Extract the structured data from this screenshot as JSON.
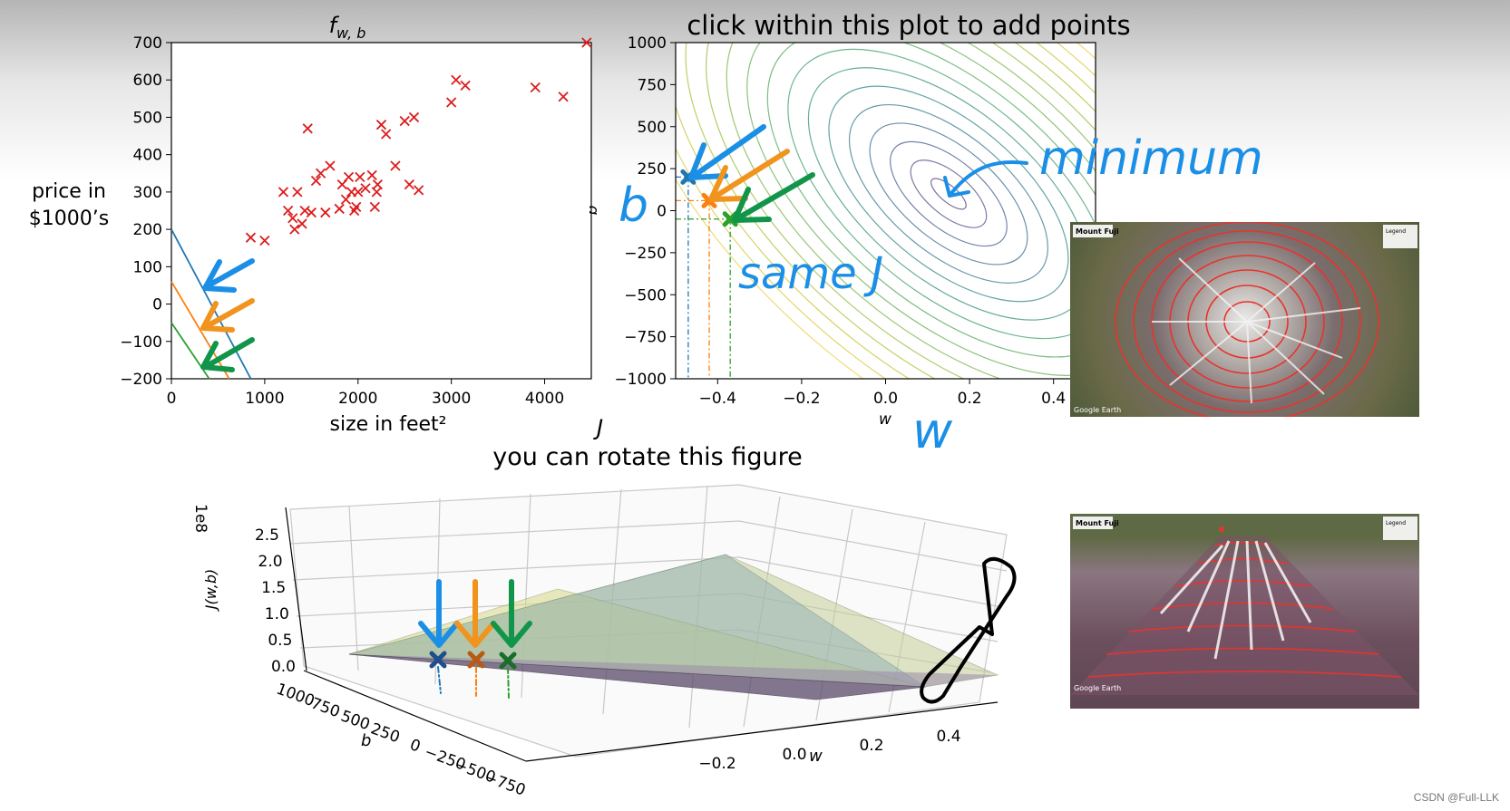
{
  "chart_data": [
    {
      "type": "scatter",
      "title": "f_w,b",
      "xlabel": "size in feet²",
      "ylabel": [
        "price in",
        "$1000’s"
      ],
      "xlim": [
        0,
        4500
      ],
      "ylim": [
        -200,
        700
      ],
      "xticks": [
        "0",
        "1000",
        "2000",
        "3000",
        "4000"
      ],
      "yticks": [
        "700",
        "600",
        "500",
        "400",
        "300",
        "200",
        "100",
        "0",
        "−100",
        "−200"
      ],
      "marker": "x",
      "color": "#dd1c1c",
      "points": [
        [
          850,
          178
        ],
        [
          1000,
          170
        ],
        [
          1200,
          300
        ],
        [
          1250,
          250
        ],
        [
          1300,
          230
        ],
        [
          1320,
          200
        ],
        [
          1350,
          300
        ],
        [
          1400,
          215
        ],
        [
          1430,
          250
        ],
        [
          1460,
          470
        ],
        [
          1500,
          245
        ],
        [
          1550,
          330
        ],
        [
          1600,
          350
        ],
        [
          1650,
          245
        ],
        [
          1700,
          370
        ],
        [
          1800,
          255
        ],
        [
          1830,
          320
        ],
        [
          1870,
          280
        ],
        [
          1900,
          340
        ],
        [
          1930,
          300
        ],
        [
          1960,
          250
        ],
        [
          1980,
          260
        ],
        [
          2000,
          300
        ],
        [
          2020,
          340
        ],
        [
          2080,
          310
        ],
        [
          2150,
          345
        ],
        [
          2180,
          260
        ],
        [
          2200,
          300
        ],
        [
          2210,
          320
        ],
        [
          2250,
          480
        ],
        [
          2300,
          455
        ],
        [
          2400,
          370
        ],
        [
          2500,
          490
        ],
        [
          2550,
          320
        ],
        [
          2600,
          500
        ],
        [
          2650,
          305
        ],
        [
          3000,
          540
        ],
        [
          3050,
          600
        ],
        [
          3150,
          585
        ],
        [
          3900,
          580
        ],
        [
          4200,
          555
        ],
        [
          4450,
          700
        ]
      ],
      "lines": [
        {
          "name": "blue",
          "color": "#1f77b4",
          "intercept": 200,
          "slope": -0.47
        },
        {
          "name": "orange",
          "color": "#ff7f0e",
          "intercept": 60,
          "slope": -0.42
        },
        {
          "name": "green",
          "color": "#2ca02c",
          "intercept": -50,
          "slope": -0.37
        }
      ]
    },
    {
      "type": "contour",
      "title": "click within this plot to add points",
      "xlabel": "w",
      "ylabel": "b",
      "xlim": [
        -0.5,
        0.5
      ],
      "ylim": [
        -1000,
        1000
      ],
      "xticks": [
        "−0.4",
        "−0.2",
        "0.0",
        "0.2",
        "0.4"
      ],
      "yticks": [
        "1000",
        "750",
        "500",
        "250",
        "0",
        "−250",
        "−500",
        "−750",
        "−1000"
      ],
      "minimum": [
        0.15,
        100
      ],
      "points": [
        {
          "name": "blue",
          "color": "#1f77b4",
          "w": -0.47,
          "b": 200
        },
        {
          "name": "orange",
          "color": "#ff7f0e",
          "w": -0.42,
          "b": 60
        },
        {
          "name": "green",
          "color": "#2ca02c",
          "w": -0.37,
          "b": -50
        }
      ]
    },
    {
      "type": "surface",
      "title": "J",
      "subtitle": "you can rotate this figure",
      "zlabel": "J(w,b)",
      "zscale": "1e8",
      "zticks": [
        "2.5",
        "2.0",
        "1.5",
        "1.0",
        "0.5",
        "0.0"
      ],
      "xlabel": "w",
      "xticks": [
        "0.4",
        "0.2",
        "0.0",
        "−0.2"
      ],
      "ylabel": "b",
      "yticks": [
        "1000",
        "750",
        "500",
        "250",
        "0",
        "−250",
        "−500",
        "−750"
      ]
    }
  ],
  "annotations": {
    "minimum": "minimum",
    "same_j": "same J",
    "b_letter": "b",
    "w_letter": "w",
    "j_top": "J"
  },
  "photos": [
    {
      "label": "Mount Fuji",
      "credit": "Google Earth",
      "legend": "Legend"
    },
    {
      "label": "Mount Fuji",
      "credit": "Google Earth",
      "legend": "Legend"
    }
  ],
  "watermark": "CSDN @Full-LLK"
}
